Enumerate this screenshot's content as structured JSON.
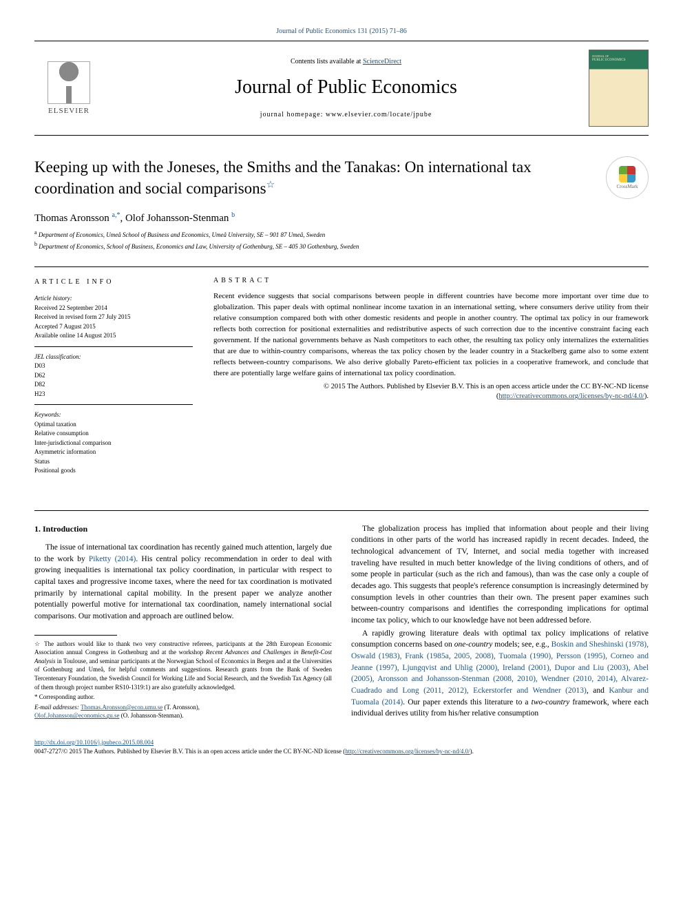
{
  "top_link": "Journal of Public Economics 131 (2015) 71–86",
  "header": {
    "contents_prefix": "Contents lists available at ",
    "contents_link": "ScienceDirect",
    "journal_name": "Journal of Public Economics",
    "homepage_prefix": "journal homepage: ",
    "homepage": "www.elsevier.com/locate/jpube",
    "publisher": "ELSEVIER"
  },
  "crossmark": "CrossMark",
  "title": "Keeping up with the Joneses, the Smiths and the Tanakas: On international tax coordination and social comparisons",
  "title_star": "☆",
  "authors": {
    "a1_name": "Thomas Aronsson ",
    "a1_sup": "a,*",
    "sep": ", ",
    "a2_name": "Olof Johansson-Stenman ",
    "a2_sup": "b"
  },
  "affiliations": {
    "a_sup": "a",
    "a": " Department of Economics, Umeå School of Business and Economics, Umeå University, SE – 901 87 Umeå, Sweden",
    "b_sup": "b",
    "b": " Department of Economics, School of Business, Economics and Law, University of Gothenburg, SE – 405 30 Gothenburg, Sweden"
  },
  "info": {
    "heading": "article info",
    "history_label": "Article history:",
    "received": "Received 22 September 2014",
    "revised": "Received in revised form 27 July 2015",
    "accepted": "Accepted 7 August 2015",
    "online": "Available online 14 August 2015",
    "jel_label": "JEL classification:",
    "jel1": "D03",
    "jel2": "D62",
    "jel3": "D82",
    "jel4": "H23",
    "keywords_label": "Keywords:",
    "kw1": "Optimal taxation",
    "kw2": "Relative consumption",
    "kw3": "Inter-jurisdictional comparison",
    "kw4": "Asymmetric information",
    "kw5": "Status",
    "kw6": "Positional goods"
  },
  "abstract": {
    "heading": "abstract",
    "text": "Recent evidence suggests that social comparisons between people in different countries have become more important over time due to globalization. This paper deals with optimal nonlinear income taxation in an international setting, where consumers derive utility from their relative consumption compared both with other domestic residents and people in another country. The optimal tax policy in our framework reflects both correction for positional externalities and redistributive aspects of such correction due to the incentive constraint facing each government. If the national governments behave as Nash competitors to each other, the resulting tax policy only internalizes the externalities that are due to within-country comparisons, whereas the tax policy chosen by the leader country in a Stackelberg game also to some extent reflects between-country comparisons. We also derive globally Pareto-efficient tax policies in a cooperative framework, and conclude that there are potentially large welfare gains of international tax policy coordination.",
    "copyright1": "© 2015 The Authors. Published by Elsevier B.V. This is an open access article under the CC BY-NC-ND license",
    "copyright2_prefix": "(",
    "copyright2_link": "http://creativecommons.org/licenses/by-nc-nd/4.0/",
    "copyright2_suffix": ")."
  },
  "section1_heading": "1. Introduction",
  "para1_a": "The issue of international tax coordination has recently gained much attention, largely due to the work by ",
  "para1_ref": "Piketty (2014)",
  "para1_b": ". His central policy recommendation in order to deal with growing inequalities is international tax policy coordination, in particular with respect to capital taxes and progressive income taxes, where the need for tax coordination is motivated primarily by international capital mobility. In the present paper we analyze another potentially powerful motive for international tax coordination, namely international social comparisons. Our motivation and approach are outlined below.",
  "para2": "The globalization process has implied that information about people and their living conditions in other parts of the world has increased rapidly in recent decades. Indeed, the technological advancement of TV, Internet, and social media together with increased traveling have resulted in much better knowledge of the living conditions of others, and of some people in particular (such as the rich and famous), than was the case only a couple of decades ago. This suggests that people's reference consumption is increasingly determined by consumption levels in other countries than their own. The present paper examines such between-country comparisons and identifies the corresponding implications for optimal income tax policy, which to our knowledge have not been addressed before.",
  "para3_a": "A rapidly growing literature deals with optimal tax policy implications of relative consumption concerns based on ",
  "para3_em1": "one-country",
  "para3_b": " models; see, e.g., ",
  "para3_refs": "Boskin and Sheshinski (1978), Oswald (1983), Frank (1985a, 2005, 2008), Tuomala (1990), Persson (1995), Corneo and Jeanne (1997), Ljungqvist and Uhlig (2000), Ireland (2001), Dupor and Liu (2003), Abel (2005), Aronsson and Johansson-Stenman (2008, 2010), Wendner (2010, 2014), Alvarez-Cuadrado and Long (2011, 2012), Eckerstorfer and Wendner (2013)",
  "para3_c": ", and ",
  "para3_ref2": "Kanbur and Tuomala (2014)",
  "para3_d": ". Our paper extends this literature to a ",
  "para3_em2": "two-country",
  "para3_e": " framework, where each individual derives utility from his/her relative consumption",
  "footnotes": {
    "star": "☆",
    "star_text_a": " The authors would like to thank two very constructive referees, participants at the 28th European Economic Association annual Congress in Gothenburg and at the workshop ",
    "star_text_em": "Recent Advances and Challenges in Benefit-Cost Analysis",
    "star_text_b": " in Toulouse, and seminar participants at the Norwegian School of Economics in Bergen and at the Universities of Gothenburg and Umeå, for helpful comments and suggestions. Research grants from the Bank of Sweden Tercentenary Foundation, the Swedish Council for Working Life and Social Research, and the Swedish Tax Agency (all of them through project number RS10-1319:1) are also gratefully acknowledged.",
    "corr_mark": "*",
    "corr_text": " Corresponding author.",
    "email_label": "E-mail addresses: ",
    "email1": "Thomas.Aronsson@econ.umu.se",
    "email1_who": " (T. Aronsson), ",
    "email2": "Olof.Johansson@economics.gu.se",
    "email2_who": " (O. Johansson-Stenman)."
  },
  "footer": {
    "doi": "http://dx.doi.org/10.1016/j.jpubeco.2015.08.004",
    "line2_a": "0047-2727/© 2015 The Authors. Published by Elsevier B.V. This is an open access article under the CC BY-NC-ND license (",
    "line2_link": "http://creativecommons.org/licenses/by-nc-nd/4.0/",
    "line2_b": ")."
  },
  "colors": {
    "link": "#1a5490",
    "text": "#000000",
    "cover_green": "#2a7a5a",
    "cover_cream": "#f5e8c0"
  }
}
